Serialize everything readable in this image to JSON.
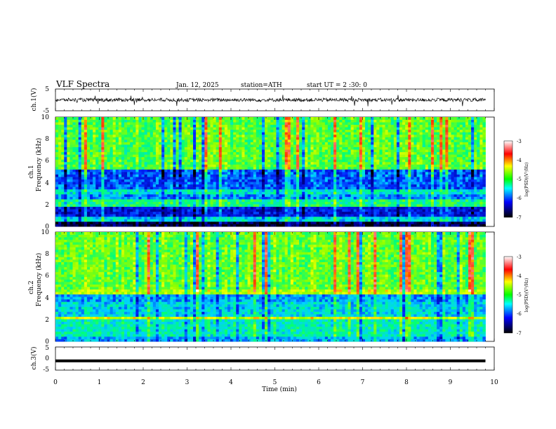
{
  "header": {
    "title": "VLF  Spectra",
    "date": "Jan. 12, 2025",
    "station": "station=ATH",
    "start": "start  UT  =   2  :30: 0"
  },
  "chart_data": [
    {
      "type": "line",
      "name": "ch1-waveform",
      "ylabel": "ch.1(V)",
      "xlim": [
        0,
        10
      ],
      "ylim": [
        -5,
        5
      ],
      "yticks": [
        "5",
        "-5"
      ],
      "baseline": 0,
      "trace_end_min": 9.8,
      "color": "#000000"
    },
    {
      "type": "heatmap",
      "name": "ch1-spectrogram",
      "ylabel_line1": "ch.1",
      "ylabel_line2": "Frequency  (kHz)",
      "xlim": [
        0,
        10
      ],
      "ylim": [
        0,
        10
      ],
      "yticks": [
        "0",
        "2",
        "4",
        "6",
        "8",
        "10"
      ],
      "data_end_min": 9.8,
      "bands_khz": [
        {
          "from": 0,
          "to": 0.5,
          "level": -6.8
        },
        {
          "from": 0.5,
          "to": 0.9,
          "level": -5.4
        },
        {
          "from": 0.9,
          "to": 1.9,
          "level": -6.2
        },
        {
          "from": 1.9,
          "to": 2.4,
          "level": -5.0
        },
        {
          "from": 2.4,
          "to": 3.0,
          "level": -5.7
        },
        {
          "from": 3.0,
          "to": 3.4,
          "level": -5.3
        },
        {
          "from": 3.4,
          "to": 5.3,
          "level": -5.9
        },
        {
          "from": 5.3,
          "to": 10,
          "level": -4.7
        }
      ]
    },
    {
      "type": "heatmap",
      "name": "ch2-spectrogram",
      "ylabel_line1": "ch.2",
      "ylabel_line2": "Frequency  (kHz)",
      "xlim": [
        0,
        10
      ],
      "ylim": [
        0,
        10
      ],
      "yticks": [
        "0",
        "2",
        "4",
        "6",
        "8",
        "10"
      ],
      "data_end_min": 9.8,
      "bands_khz": [
        {
          "from": 0,
          "to": 0.4,
          "level": -5.6
        },
        {
          "from": 0.4,
          "to": 2.0,
          "level": -5.2
        },
        {
          "from": 2.0,
          "to": 2.3,
          "level": -4.2
        },
        {
          "from": 2.3,
          "to": 3.6,
          "level": -5.4
        },
        {
          "from": 3.6,
          "to": 4.4,
          "level": -5.6
        },
        {
          "from": 4.4,
          "to": 4.7,
          "level": -4.3
        },
        {
          "from": 4.7,
          "to": 10,
          "level": -4.6
        }
      ]
    },
    {
      "type": "line",
      "name": "ch3-waveform",
      "ylabel": "ch.3(V)",
      "xlim": [
        0,
        10
      ],
      "ylim": [
        -5,
        5
      ],
      "yticks": [
        "5",
        "0",
        "-5"
      ],
      "baseline": -1,
      "trace_end_min": 9.8,
      "color": "#000000",
      "xlabel": "Time  (min)",
      "xticks": [
        "0",
        "1",
        "2",
        "3",
        "4",
        "5",
        "6",
        "7",
        "8",
        "9",
        "10"
      ]
    }
  ],
  "colorbar": {
    "label": "log(PSD)(V²/Hz)",
    "range": [
      -7,
      -3
    ],
    "ticks": [
      "-3",
      "-4",
      "-5",
      "-6",
      "-7"
    ],
    "colors": [
      "#ffffff",
      "#ff0000",
      "#ffff00",
      "#00ff00",
      "#00ffff",
      "#0000ff",
      "#000000"
    ]
  }
}
